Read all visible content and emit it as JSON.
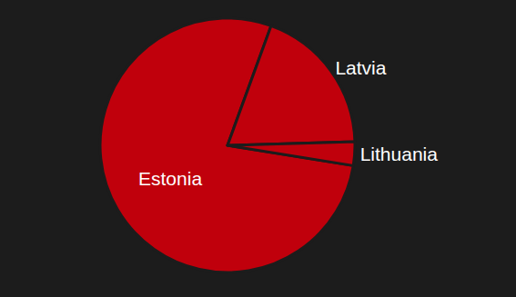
{
  "chart_data": {
    "type": "pie",
    "categories": [
      "Estonia",
      "Latvia",
      "Lithuania"
    ],
    "values": [
      78,
      19,
      3
    ],
    "color": "#c0000c"
  }
}
